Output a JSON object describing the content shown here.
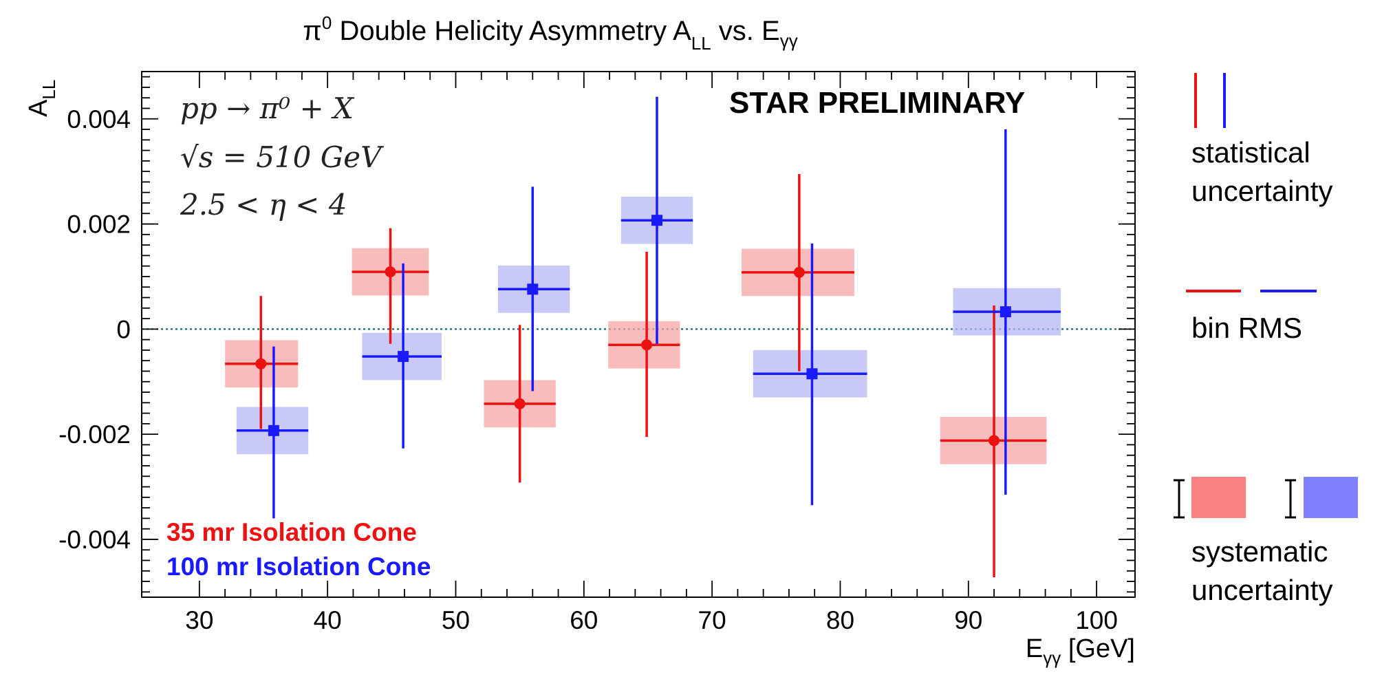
{
  "chart_data": {
    "type": "scatter",
    "title": "π⁰ Double Helicity Asymmetry A_LL vs. E_γγ",
    "title_parts": {
      "pi": "π",
      "pi_sup": "0",
      "main": " Double Helicity Asymmetry A",
      "a_sub": "LL",
      "vs": " vs. E",
      "e_sub": "γγ"
    },
    "xlabel_main": "E",
    "xlabel_sub": "γγ",
    "xlabel_unit": " [GeV]",
    "ylabel_main": "A",
    "ylabel_sub": "LL",
    "xlim": [
      25.5,
      103
    ],
    "ylim": [
      -0.0051,
      0.0049
    ],
    "xticks": [
      30,
      40,
      50,
      60,
      70,
      80,
      90,
      100
    ],
    "xtick_labels": [
      "30",
      "40",
      "50",
      "60",
      "70",
      "80",
      "90",
      "100"
    ],
    "yticks": [
      -0.004,
      -0.002,
      0,
      0.002,
      0.004
    ],
    "ytick_labels": [
      "-0.004",
      "-0.002",
      "0",
      "0.002",
      "0.004"
    ],
    "zero_line": true,
    "annotations": {
      "reaction": "pp → π⁰ + X",
      "energy": "√s = 510 GeV",
      "eta": "2.5 < η < 4",
      "preliminary": "STAR PRELIMINARY"
    },
    "series": [
      {
        "name": "35 mr Isolation Cone",
        "color": "#ee1111",
        "fill": "#f6a5a5",
        "marker": "circle",
        "points": [
          {
            "x": 34.8,
            "y": -0.00066,
            "xlo": 32.0,
            "xhi": 37.7,
            "stat_lo": -0.0019,
            "stat_hi": 0.00063,
            "sys_lo": -0.00111,
            "sys_hi": -0.00021
          },
          {
            "x": 44.9,
            "y": 0.00109,
            "xlo": 41.9,
            "xhi": 47.9,
            "stat_lo": -0.00028,
            "stat_hi": 0.00192,
            "sys_lo": 0.00064,
            "sys_hi": 0.00154
          },
          {
            "x": 55.0,
            "y": -0.00142,
            "xlo": 52.2,
            "xhi": 57.8,
            "stat_lo": -0.00292,
            "stat_hi": 8e-05,
            "sys_lo": -0.00187,
            "sys_hi": -0.00097
          },
          {
            "x": 64.9,
            "y": -0.0003,
            "xlo": 61.9,
            "xhi": 67.5,
            "stat_lo": -0.00205,
            "stat_hi": 0.00147,
            "sys_lo": -0.00075,
            "sys_hi": 0.00015
          },
          {
            "x": 76.8,
            "y": 0.00108,
            "xlo": 72.3,
            "xhi": 81.1,
            "stat_lo": -0.0008,
            "stat_hi": 0.00295,
            "sys_lo": 0.00063,
            "sys_hi": 0.00153
          },
          {
            "x": 92.0,
            "y": -0.00212,
            "xlo": 87.8,
            "xhi": 96.1,
            "stat_lo": -0.00472,
            "stat_hi": 0.00045,
            "sys_lo": -0.00257,
            "sys_hi": -0.00167
          }
        ]
      },
      {
        "name": "100 mr Isolation Cone",
        "color": "#1a1aff",
        "fill": "#b7b7f6",
        "marker": "square",
        "points": [
          {
            "x": 35.8,
            "y": -0.00193,
            "xlo": 32.9,
            "xhi": 38.5,
            "stat_lo": -0.0036,
            "stat_hi": -0.00033,
            "sys_lo": -0.00238,
            "sys_hi": -0.00148
          },
          {
            "x": 45.9,
            "y": -0.00052,
            "xlo": 42.7,
            "xhi": 48.9,
            "stat_lo": -0.00227,
            "stat_hi": 0.00125,
            "sys_lo": -0.00097,
            "sys_hi": -7e-05
          },
          {
            "x": 56.0,
            "y": 0.00076,
            "xlo": 53.3,
            "xhi": 58.9,
            "stat_lo": -0.00118,
            "stat_hi": 0.00271,
            "sys_lo": 0.00031,
            "sys_hi": 0.00121
          },
          {
            "x": 65.7,
            "y": 0.00207,
            "xlo": 62.9,
            "xhi": 68.5,
            "stat_lo": -0.00028,
            "stat_hi": 0.00442,
            "sys_lo": 0.00162,
            "sys_hi": 0.00252
          },
          {
            "x": 77.8,
            "y": -0.00085,
            "xlo": 73.2,
            "xhi": 82.1,
            "stat_lo": -0.00335,
            "stat_hi": 0.00163,
            "sys_lo": -0.0013,
            "sys_hi": -0.0004
          },
          {
            "x": 92.9,
            "y": 0.00033,
            "xlo": 88.8,
            "xhi": 97.2,
            "stat_lo": -0.00315,
            "stat_hi": 0.0038,
            "sys_lo": -0.00012,
            "sys_hi": 0.00078
          }
        ]
      }
    ],
    "key": {
      "statistical": [
        "statistical",
        "uncertainty"
      ],
      "bin_rms": "bin RMS",
      "systematic": [
        "systematic",
        "uncertainty"
      ]
    }
  }
}
